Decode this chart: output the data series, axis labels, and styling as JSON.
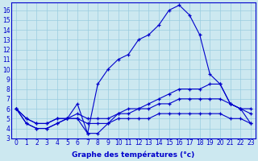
{
  "xlabel": "Graphe des températures (°c)",
  "background_color": "#cce8f0",
  "grid_color": "#99cce0",
  "line_color": "#0000cc",
  "x_values": [
    0,
    1,
    2,
    3,
    4,
    5,
    6,
    7,
    8,
    9,
    10,
    11,
    12,
    13,
    14,
    15,
    16,
    17,
    18,
    19,
    20,
    21,
    22,
    23
  ],
  "series": [
    [
      6,
      4.5,
      4,
      4,
      4.5,
      5,
      6.5,
      3.5,
      8.5,
      10,
      11,
      11.5,
      13,
      13.5,
      14.5,
      16,
      16.5,
      15.5,
      13.5,
      9.5,
      8.5,
      6.5,
      6,
      6
    ],
    [
      6,
      4.5,
      4,
      4,
      4.5,
      5,
      5,
      3.5,
      3.5,
      4.5,
      5.5,
      6,
      6,
      6.5,
      7,
      7.5,
      8,
      8,
      8,
      8.5,
      8.5,
      6.5,
      6,
      4.5
    ],
    [
      6,
      5,
      4.5,
      4.5,
      5,
      5,
      5.5,
      5,
      5,
      5,
      5.5,
      5.5,
      6,
      6,
      6.5,
      6.5,
      7,
      7,
      7,
      7,
      7,
      6.5,
      6,
      5.5
    ],
    [
      6,
      5,
      4.5,
      4.5,
      5,
      5,
      5,
      4.5,
      4.5,
      4.5,
      5,
      5,
      5,
      5,
      5.5,
      5.5,
      5.5,
      5.5,
      5.5,
      5.5,
      5.5,
      5,
      5,
      4.5
    ]
  ],
  "ylim": [
    3,
    16.8
  ],
  "xlim": [
    -0.5,
    23.5
  ],
  "yticks": [
    3,
    4,
    5,
    6,
    7,
    8,
    9,
    10,
    11,
    12,
    13,
    14,
    15,
    16
  ],
  "xticks": [
    0,
    1,
    2,
    3,
    4,
    5,
    6,
    7,
    8,
    9,
    10,
    11,
    12,
    13,
    14,
    15,
    16,
    17,
    18,
    19,
    20,
    21,
    22,
    23
  ],
  "tick_fontsize": 5.5,
  "xlabel_fontsize": 6.5
}
